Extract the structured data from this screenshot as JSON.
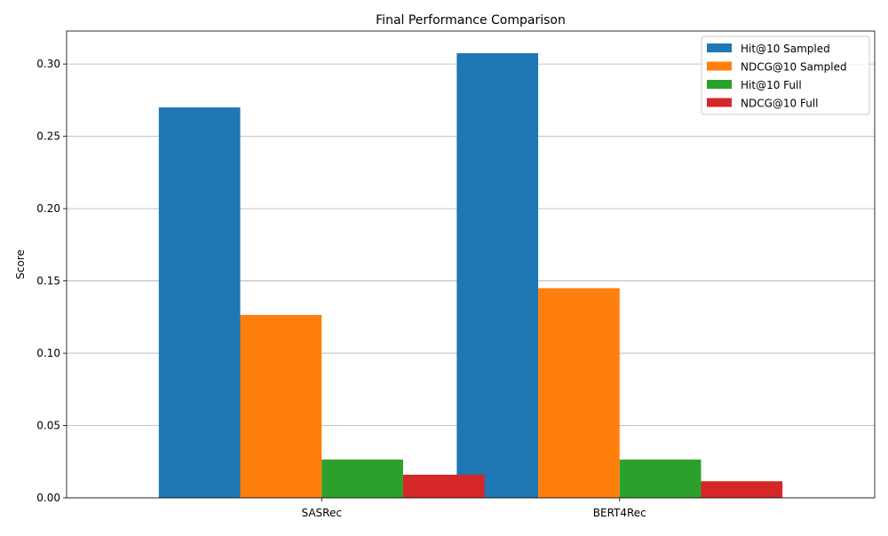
{
  "chart_data": {
    "type": "bar",
    "title": "Final Performance Comparison",
    "xlabel": "",
    "ylabel": "Score",
    "categories": [
      "SASRec",
      "BERT4Rec"
    ],
    "series": [
      {
        "name": "Hit@10 Sampled",
        "color": "#1f77b4",
        "values": [
          0.27,
          0.3075
        ]
      },
      {
        "name": "NDCG@10 Sampled",
        "color": "#ff7f0e",
        "values": [
          0.1265,
          0.145
        ]
      },
      {
        "name": "Hit@10 Full",
        "color": "#2ca02c",
        "values": [
          0.0265,
          0.0265
        ]
      },
      {
        "name": "NDCG@10 Full",
        "color": "#d62728",
        "values": [
          0.016,
          0.0115
        ]
      }
    ],
    "ylim": [
      0,
      0.3228
    ],
    "yticks": [
      "0.00",
      "0.05",
      "0.10",
      "0.15",
      "0.20",
      "0.25",
      "0.30"
    ],
    "grid": "horizontal",
    "legend_position": "top-right"
  }
}
